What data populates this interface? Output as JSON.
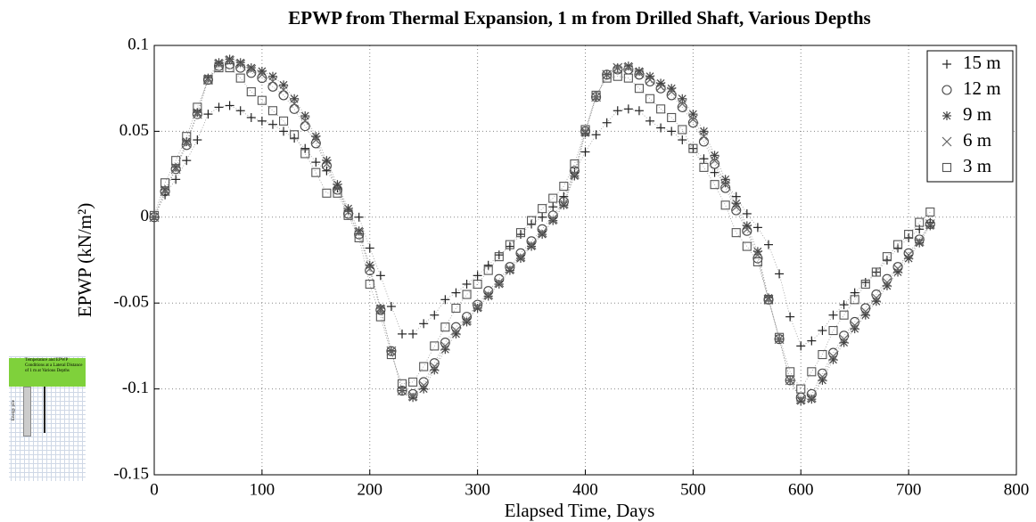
{
  "chart_data": {
    "type": "scatter",
    "title": "EPWP from Thermal Expansion, 1 m from Drilled Shaft, Various Depths",
    "x_label": "Elapsed Time, Days",
    "y_label": "EPWP (kN/m²)",
    "xlim": [
      0,
      800
    ],
    "xticks": [
      0,
      100,
      200,
      300,
      400,
      500,
      600,
      700,
      800
    ],
    "ylim": [
      -0.15,
      0.1
    ],
    "yticks": [
      -0.15,
      -0.1,
      -0.05,
      0,
      0.05,
      0.1
    ],
    "grid": true,
    "legend": "upper right",
    "connect_points": "dotted",
    "x": [
      0,
      10,
      20,
      30,
      40,
      50,
      60,
      70,
      80,
      90,
      100,
      110,
      120,
      130,
      140,
      150,
      160,
      170,
      180,
      190,
      200,
      210,
      220,
      230,
      240,
      250,
      260,
      270,
      280,
      290,
      300,
      310,
      320,
      330,
      340,
      350,
      360,
      370,
      380,
      390,
      400,
      410,
      420,
      430,
      440,
      450,
      460,
      470,
      480,
      490,
      500,
      510,
      520,
      530,
      540,
      550,
      560,
      570,
      580,
      590,
      600,
      610,
      620,
      630,
      640,
      650,
      660,
      670,
      680,
      690,
      700,
      710,
      720
    ],
    "series": [
      {
        "name": "15 m",
        "marker": "+",
        "color": "#222222",
        "values": [
          0,
          0.013,
          0.022,
          0.033,
          0.045,
          0.06,
          0.064,
          0.065,
          0.062,
          0.058,
          0.056,
          0.054,
          0.05,
          0.046,
          0.04,
          0.032,
          0.027,
          0.017,
          0.004,
          0.0,
          -0.018,
          -0.034,
          -0.052,
          -0.068,
          -0.068,
          -0.062,
          -0.057,
          -0.048,
          -0.044,
          -0.039,
          -0.034,
          -0.028,
          -0.022,
          -0.017,
          -0.01,
          -0.004,
          0.0,
          0.006,
          0.012,
          0.026,
          0.038,
          0.048,
          0.055,
          0.062,
          0.063,
          0.062,
          0.056,
          0.052,
          0.05,
          0.045,
          0.04,
          0.034,
          0.026,
          0.02,
          0.012,
          0.002,
          -0.006,
          -0.016,
          -0.033,
          -0.058,
          -0.075,
          -0.072,
          -0.066,
          -0.057,
          -0.051,
          -0.044,
          -0.038,
          -0.032,
          -0.025,
          -0.018,
          -0.012,
          -0.007,
          -0.003
        ]
      },
      {
        "name": "12 m",
        "marker": "o",
        "color": "#444444",
        "values": [
          0,
          0.015,
          0.028,
          0.042,
          0.06,
          0.08,
          0.088,
          0.089,
          0.087,
          0.084,
          0.081,
          0.076,
          0.071,
          0.063,
          0.053,
          0.043,
          0.03,
          0.016,
          0.002,
          -0.01,
          -0.031,
          -0.054,
          -0.078,
          -0.101,
          -0.103,
          -0.096,
          -0.085,
          -0.073,
          -0.064,
          -0.058,
          -0.051,
          -0.043,
          -0.036,
          -0.029,
          -0.021,
          -0.014,
          -0.007,
          0.001,
          0.009,
          0.027,
          0.05,
          0.07,
          0.083,
          0.086,
          0.086,
          0.083,
          0.079,
          0.075,
          0.071,
          0.064,
          0.055,
          0.044,
          0.031,
          0.017,
          0.004,
          -0.008,
          -0.024,
          -0.048,
          -0.071,
          -0.095,
          -0.105,
          -0.103,
          -0.091,
          -0.079,
          -0.069,
          -0.061,
          -0.053,
          -0.045,
          -0.036,
          -0.029,
          -0.021,
          -0.013,
          -0.004
        ]
      },
      {
        "name": "9 m",
        "marker": "*",
        "color": "#444444",
        "values": [
          0,
          0.016,
          0.029,
          0.044,
          0.061,
          0.081,
          0.09,
          0.092,
          0.09,
          0.087,
          0.085,
          0.082,
          0.077,
          0.069,
          0.059,
          0.047,
          0.033,
          0.019,
          0.005,
          -0.008,
          -0.028,
          -0.053,
          -0.078,
          -0.101,
          -0.105,
          -0.1,
          -0.089,
          -0.077,
          -0.068,
          -0.061,
          -0.053,
          -0.046,
          -0.039,
          -0.031,
          -0.024,
          -0.017,
          -0.01,
          -0.002,
          0.007,
          0.024,
          0.049,
          0.07,
          0.083,
          0.087,
          0.088,
          0.085,
          0.082,
          0.078,
          0.075,
          0.069,
          0.06,
          0.05,
          0.036,
          0.022,
          0.008,
          -0.005,
          -0.02,
          -0.047,
          -0.071,
          -0.095,
          -0.107,
          -0.106,
          -0.095,
          -0.083,
          -0.073,
          -0.065,
          -0.057,
          -0.049,
          -0.04,
          -0.032,
          -0.024,
          -0.015,
          -0.005
        ]
      },
      {
        "name": "6 m",
        "marker": "x",
        "color": "#666666",
        "values": [
          0,
          0.015,
          0.028,
          0.043,
          0.06,
          0.08,
          0.089,
          0.091,
          0.089,
          0.086,
          0.083,
          0.079,
          0.074,
          0.066,
          0.056,
          0.045,
          0.031,
          0.017,
          0.003,
          -0.009,
          -0.03,
          -0.054,
          -0.078,
          -0.101,
          -0.104,
          -0.098,
          -0.087,
          -0.075,
          -0.066,
          -0.06,
          -0.052,
          -0.045,
          -0.038,
          -0.03,
          -0.023,
          -0.016,
          -0.009,
          -0.001,
          0.008,
          0.025,
          0.05,
          0.07,
          0.083,
          0.087,
          0.087,
          0.084,
          0.08,
          0.076,
          0.073,
          0.066,
          0.057,
          0.047,
          0.033,
          0.019,
          0.006,
          -0.007,
          -0.022,
          -0.048,
          -0.071,
          -0.095,
          -0.106,
          -0.105,
          -0.093,
          -0.081,
          -0.071,
          -0.063,
          -0.055,
          -0.047,
          -0.038,
          -0.03,
          -0.022,
          -0.014,
          -0.004
        ]
      },
      {
        "name": "3 m",
        "marker": "s",
        "color": "#555555",
        "values": [
          0.001,
          0.02,
          0.033,
          0.047,
          0.064,
          0.08,
          0.087,
          0.087,
          0.081,
          0.073,
          0.068,
          0.062,
          0.056,
          0.048,
          0.037,
          0.026,
          0.014,
          0.014,
          0.001,
          -0.012,
          -0.039,
          -0.058,
          -0.08,
          -0.097,
          -0.096,
          -0.087,
          -0.075,
          -0.064,
          -0.053,
          -0.045,
          -0.039,
          -0.031,
          -0.023,
          -0.016,
          -0.009,
          -0.002,
          0.005,
          0.011,
          0.018,
          0.031,
          0.051,
          0.071,
          0.081,
          0.082,
          0.081,
          0.075,
          0.069,
          0.063,
          0.058,
          0.051,
          0.04,
          0.029,
          0.019,
          0.007,
          -0.009,
          -0.017,
          -0.026,
          -0.048,
          -0.07,
          -0.09,
          -0.1,
          -0.09,
          -0.08,
          -0.066,
          -0.057,
          -0.048,
          -0.039,
          -0.032,
          -0.023,
          -0.016,
          -0.01,
          -0.003,
          0.003
        ]
      }
    ]
  },
  "inset": {
    "caption": "Temperature and EPWP Conditions at a Lateral Distance of 1 m at Various Depths",
    "pile_label": "Energy pile"
  }
}
